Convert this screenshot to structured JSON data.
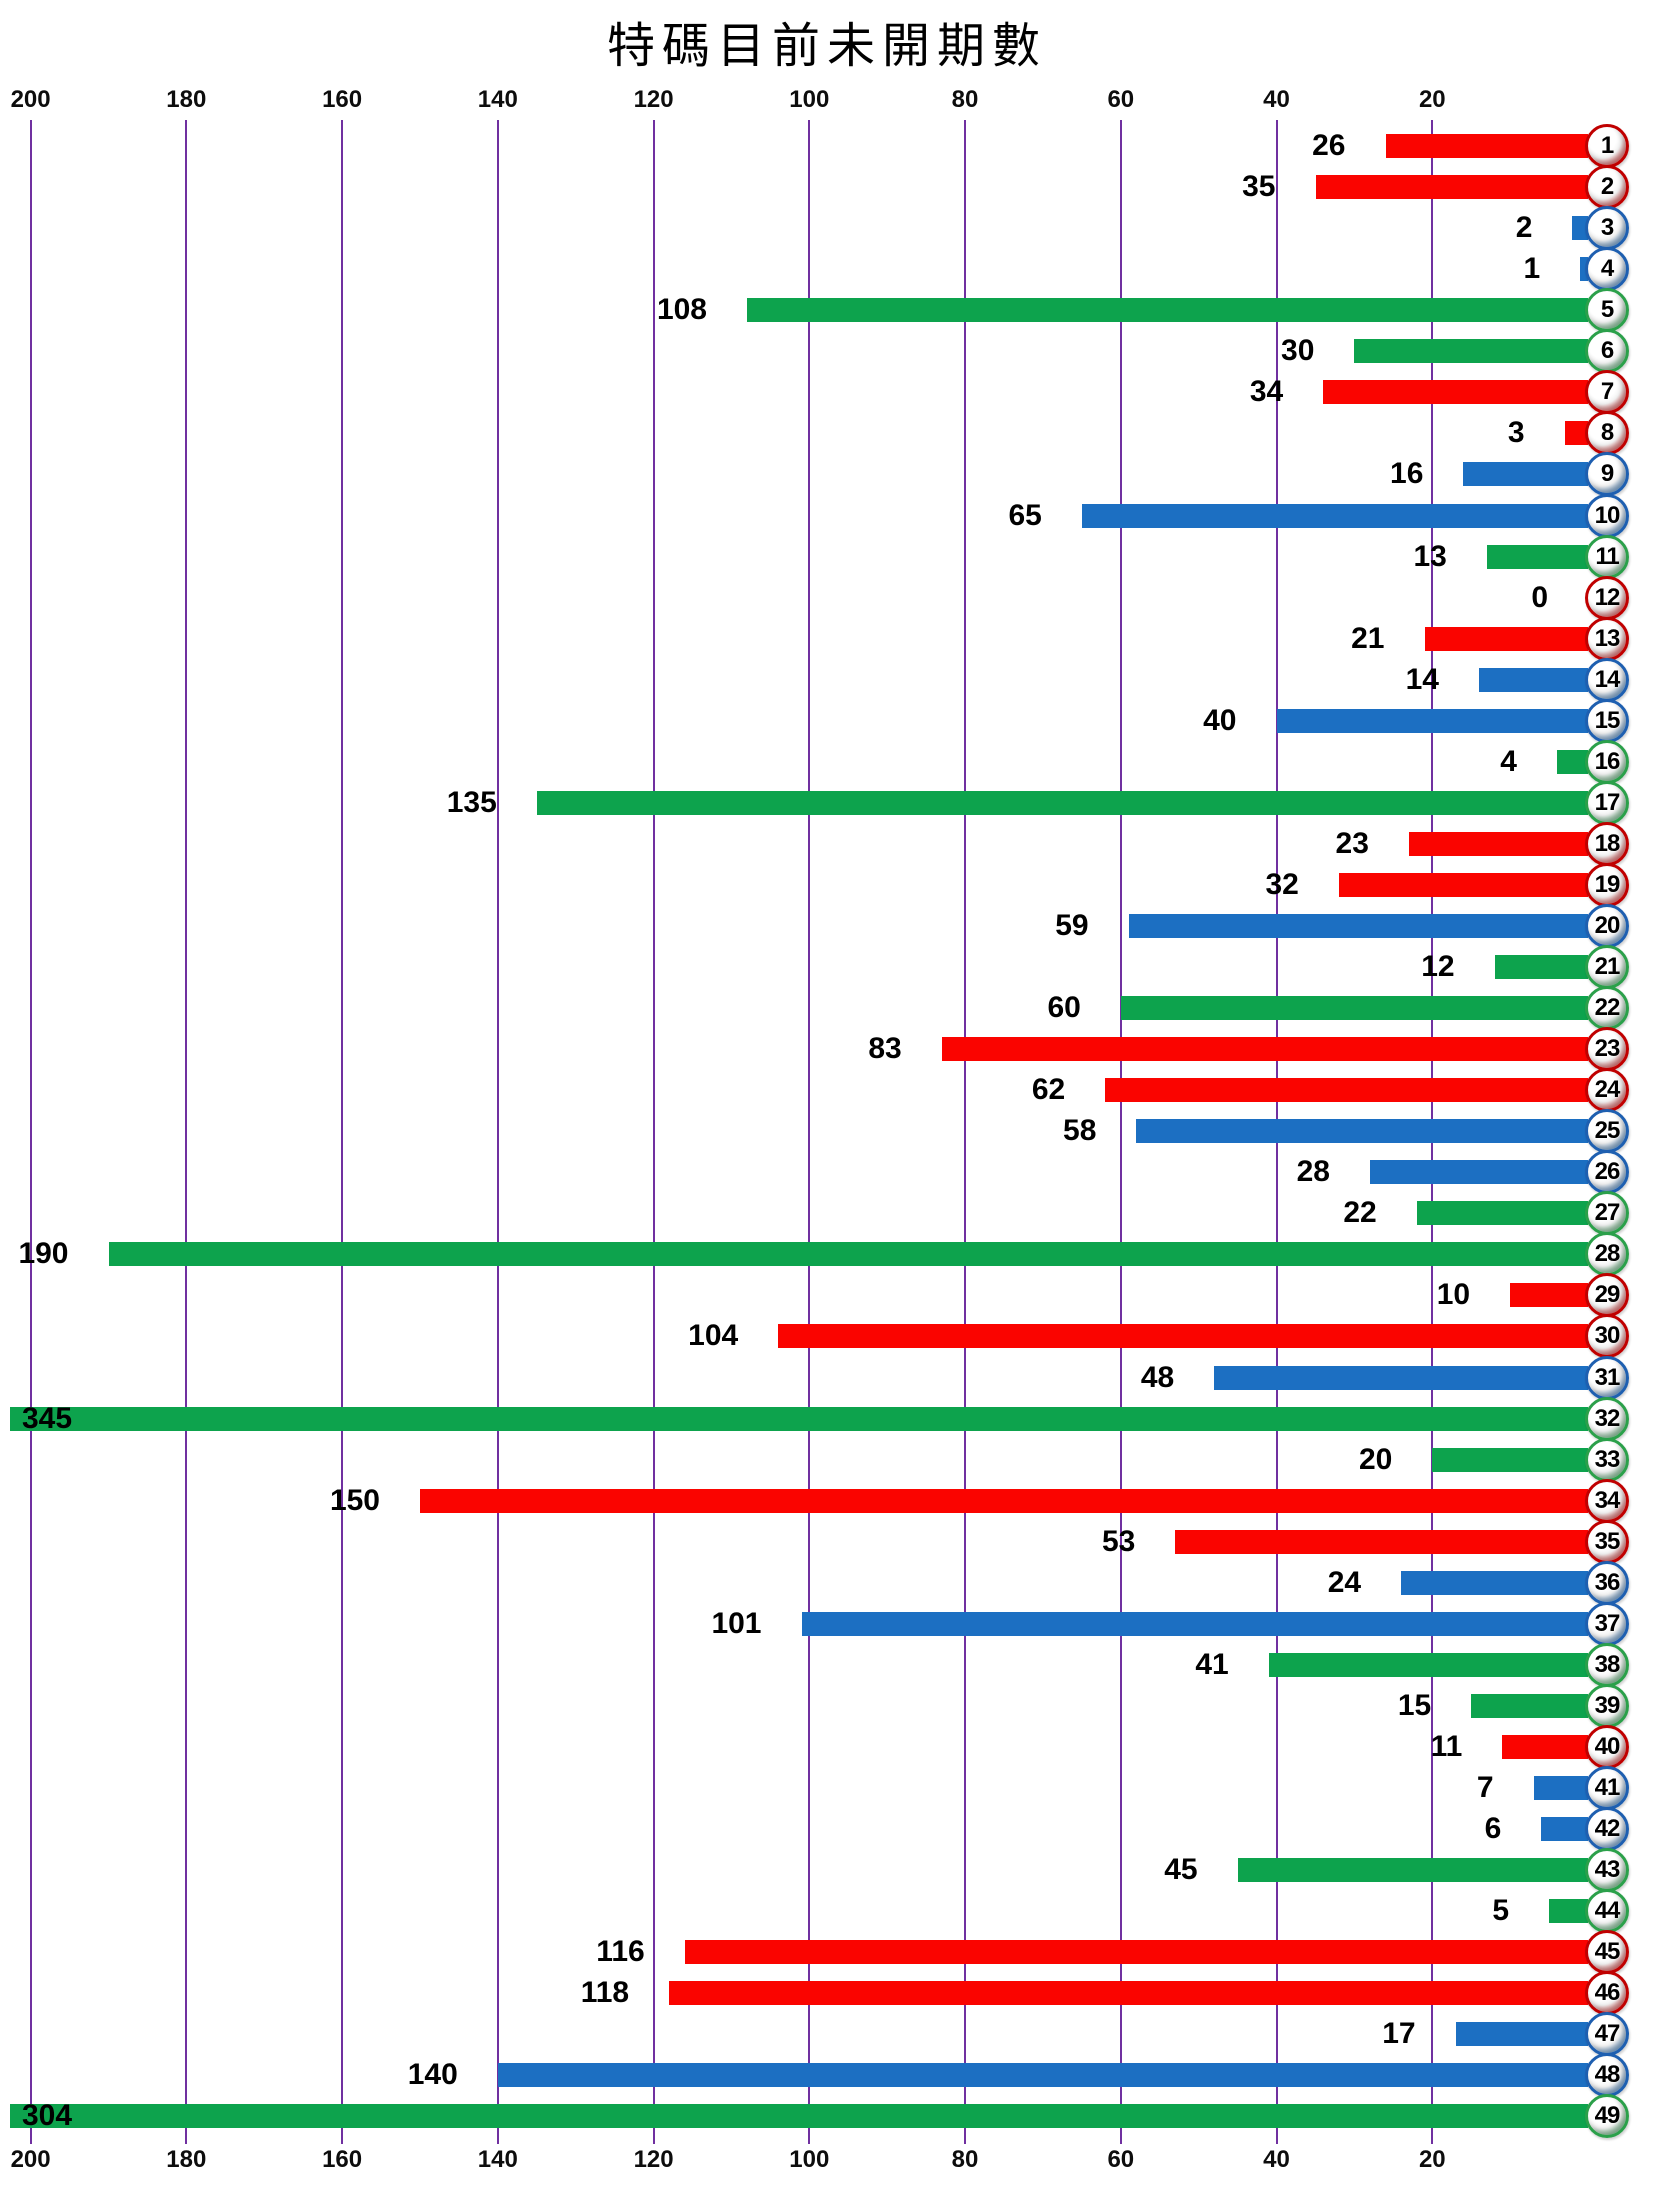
{
  "title": "特碼目前未開期數",
  "chart_data": {
    "type": "bar",
    "orientation": "horizontal-right-anchored",
    "title": "特碼目前未開期數",
    "xlabel": "",
    "ylabel": "",
    "xlim": [
      0,
      200
    ],
    "axis_direction": "values increase right-to-left, zero at right edge",
    "axis_ticks": [
      200,
      180,
      160,
      140,
      120,
      100,
      80,
      60,
      40,
      20
    ],
    "axis_ticks_shown": "top and bottom",
    "grid": true,
    "gridline_color": "#7030A0",
    "background": "#ffffff",
    "categories": [
      1,
      2,
      3,
      4,
      5,
      6,
      7,
      8,
      9,
      10,
      11,
      12,
      13,
      14,
      15,
      16,
      17,
      18,
      19,
      20,
      21,
      22,
      23,
      24,
      25,
      26,
      27,
      28,
      29,
      30,
      31,
      32,
      33,
      34,
      35,
      36,
      37,
      38,
      39,
      40,
      41,
      42,
      43,
      44,
      45,
      46,
      47,
      48,
      49
    ],
    "values": [
      26,
      35,
      2,
      1,
      108,
      30,
      34,
      3,
      16,
      65,
      13,
      0,
      21,
      14,
      40,
      4,
      135,
      23,
      32,
      59,
      12,
      60,
      83,
      62,
      58,
      28,
      22,
      190,
      10,
      104,
      48,
      345,
      20,
      150,
      53,
      24,
      101,
      41,
      15,
      11,
      7,
      6,
      45,
      5,
      116,
      118,
      17,
      140,
      304
    ],
    "colors": [
      "red",
      "red",
      "blue",
      "blue",
      "green",
      "green",
      "red",
      "red",
      "blue",
      "blue",
      "green",
      "red",
      "red",
      "blue",
      "blue",
      "green",
      "green",
      "red",
      "red",
      "blue",
      "green",
      "green",
      "red",
      "red",
      "blue",
      "blue",
      "green",
      "green",
      "red",
      "red",
      "blue",
      "green",
      "green",
      "red",
      "red",
      "blue",
      "blue",
      "green",
      "green",
      "red",
      "blue",
      "blue",
      "green",
      "green",
      "red",
      "red",
      "blue",
      "blue",
      "green"
    ],
    "bar_color_hex": {
      "red": "#FA0400",
      "blue": "#1C6FC2",
      "green": "#0DA34D"
    },
    "ball_rim_hex": {
      "red": "#C00000",
      "blue": "#1E5FB0",
      "green": "#2BA04A"
    },
    "ball_rim_light_hex": {
      "red": "#FF7A7A",
      "blue": "#86B8EA",
      "green": "#96DBAC"
    },
    "value_label_color": "#000000",
    "clipped_bars_note": "values 345 and 304 exceed axis max 200; bars are clipped at left edge with value label drawn inside the bar"
  }
}
